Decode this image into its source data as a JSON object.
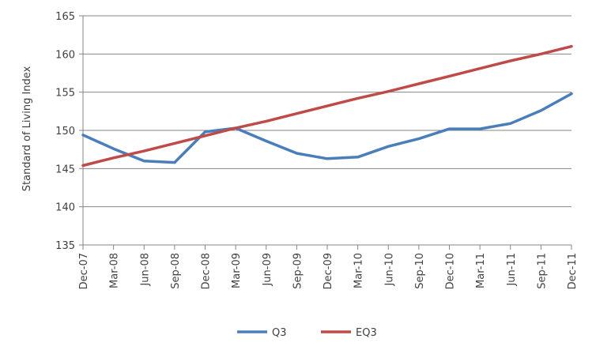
{
  "chart_data": {
    "type": "line",
    "title": "",
    "xlabel": "",
    "ylabel": "Standard of Living Index",
    "ylim": [
      135,
      165
    ],
    "yticks": [
      135,
      140,
      145,
      150,
      155,
      160,
      165
    ],
    "grid": true,
    "legend_position": "bottom",
    "categories": [
      "Dec-07",
      "Mar-08",
      "Jun-08",
      "Sep-08",
      "Dec-08",
      "Mar-09",
      "Jun-09",
      "Sep-09",
      "Dec-09",
      "Mar-10",
      "Jun-10",
      "Sep-10",
      "Dec-10",
      "Mar-11",
      "Jun-11",
      "Sep-11",
      "Dec-11"
    ],
    "series": [
      {
        "name": "Q3",
        "color": "#4a7ebb",
        "values": [
          149.4,
          147.6,
          146.0,
          145.8,
          149.8,
          150.3,
          148.6,
          147.0,
          146.3,
          146.5,
          147.9,
          148.9,
          150.2,
          150.2,
          150.9,
          152.6,
          154.8
        ]
      },
      {
        "name": "EQ3",
        "color": "#be4b48",
        "values": [
          145.4,
          146.4,
          147.3,
          148.3,
          149.3,
          150.3,
          151.2,
          152.2,
          153.2,
          154.2,
          155.1,
          156.1,
          157.1,
          158.1,
          159.1,
          160.0,
          161.0
        ]
      }
    ]
  }
}
